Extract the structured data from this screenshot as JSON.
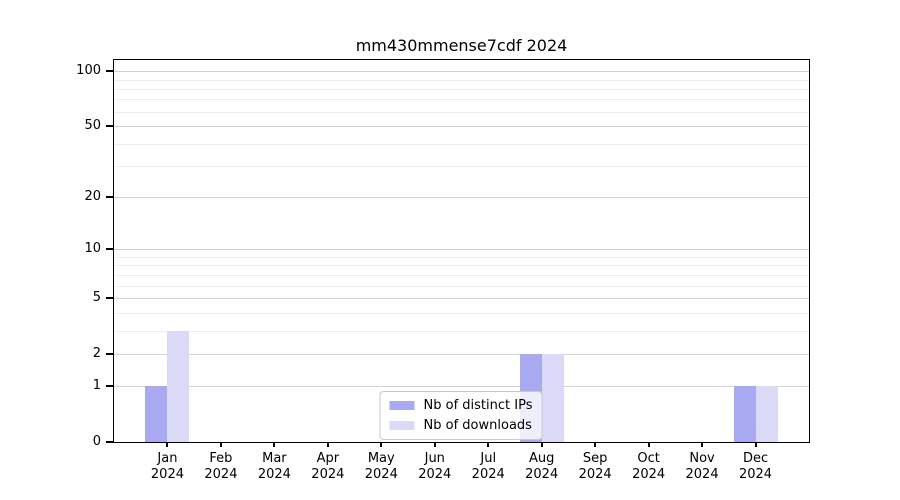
{
  "colors": {
    "ips": "#a9a9f2",
    "downloads": "#dadaf8",
    "grid_major": "#d2d2d2",
    "grid_minor": "#ededed",
    "spine": "#000000"
  },
  "chart_data": {
    "type": "bar",
    "title": "mm430mmense7cdf 2024",
    "categories": [
      "Jan",
      "Feb",
      "Mar",
      "Apr",
      "May",
      "Jun",
      "Jul",
      "Aug",
      "Sep",
      "Oct",
      "Nov",
      "Dec"
    ],
    "year": "2024",
    "series": [
      {
        "name": "Nb of distinct IPs",
        "color_key": "ips",
        "values": [
          1,
          0,
          0,
          0,
          0,
          0,
          0,
          2,
          0,
          0,
          0,
          1
        ]
      },
      {
        "name": "Nb of downloads",
        "color_key": "downloads",
        "values": [
          3,
          0,
          0,
          0,
          0,
          0,
          0,
          2,
          0,
          0,
          0,
          1
        ]
      }
    ],
    "xlabel": "",
    "ylabel": "",
    "y_scale": "log10(1+v)",
    "y_ticks": [
      0,
      1,
      2,
      5,
      10,
      20,
      50,
      100
    ],
    "y_minor_ticks": [
      3,
      4,
      6,
      7,
      8,
      9,
      30,
      40,
      60,
      70,
      80,
      90
    ],
    "ylim": [
      0,
      115
    ],
    "grid": true,
    "legend_position": "lower center"
  }
}
